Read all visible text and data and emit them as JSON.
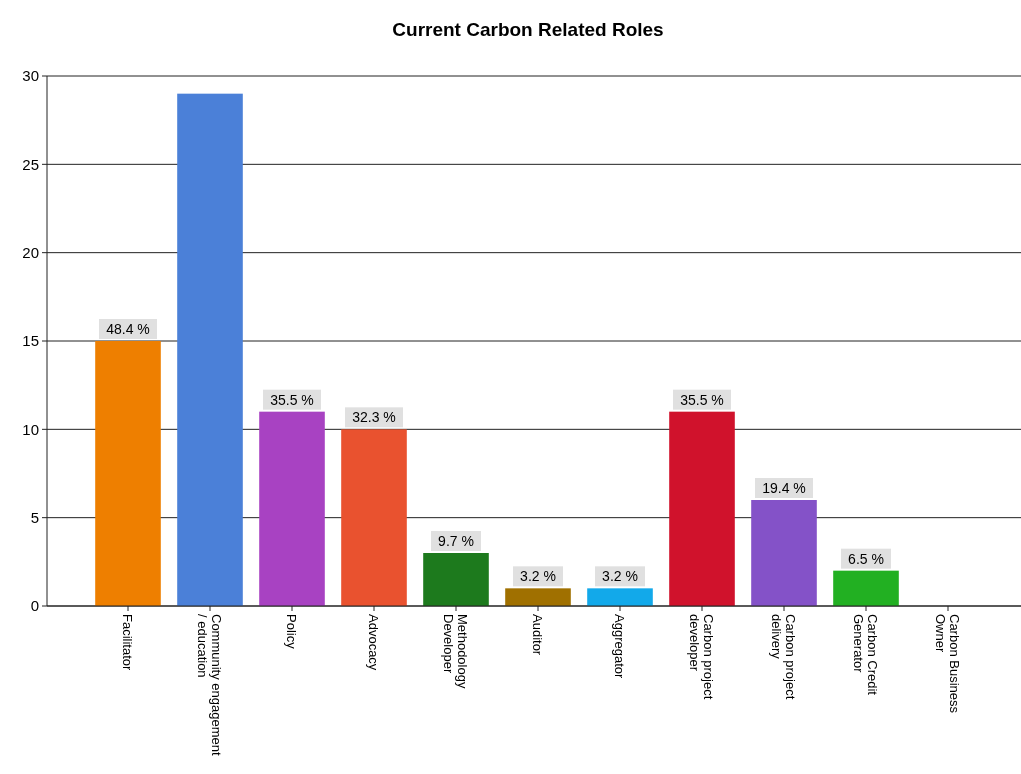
{
  "chart_data": {
    "type": "bar",
    "title": "Current Carbon Related Roles",
    "categories": [
      "Facilitator",
      "Community engagement / education",
      "Policy",
      "Advocacy",
      "Methodology Developer",
      "Auditor",
      "Aggregator",
      "Carbon project developer",
      "Carbon project delivery",
      "Carbon Credit Generator",
      "Carbon Business Owner"
    ],
    "values": [
      15,
      29,
      11,
      10,
      3,
      1,
      1,
      11,
      6,
      2,
      0
    ],
    "annotations": [
      {
        "text": "48.4 %",
        "x": "Facilitator",
        "y": 15
      },
      {
        "text": "35.5 %",
        "x": "Policy",
        "y": 11
      },
      {
        "text": "32.3 %",
        "x": "Advocacy",
        "y": 10
      },
      {
        "text": "9.7 %",
        "x": "Methodology Developer",
        "y": 3
      },
      {
        "text": "3.2 %",
        "x": "Auditor",
        "y": 1
      },
      {
        "text": "3.2 %",
        "x": "Aggregator",
        "y": 1
      },
      {
        "text": "35.5 %",
        "x": "Carbon project developer",
        "y": 11
      },
      {
        "text": "19.4 %",
        "x": "Carbon project delivery",
        "y": 6
      },
      {
        "text": "6.5 %",
        "x": "Carbon Credit Generator",
        "y": 2
      }
    ],
    "colors": [
      "#ee7f00",
      "#4b80d8",
      "#a842c2",
      "#e9522f",
      "#1d7a1d",
      "#a07000",
      "#12a9ea",
      "#d0122c",
      "#8452c8",
      "#22b022",
      "#888888"
    ],
    "ylim": [
      0,
      30
    ],
    "yticks": [
      0,
      5,
      10,
      15,
      20,
      25,
      30
    ],
    "grid": "y"
  }
}
